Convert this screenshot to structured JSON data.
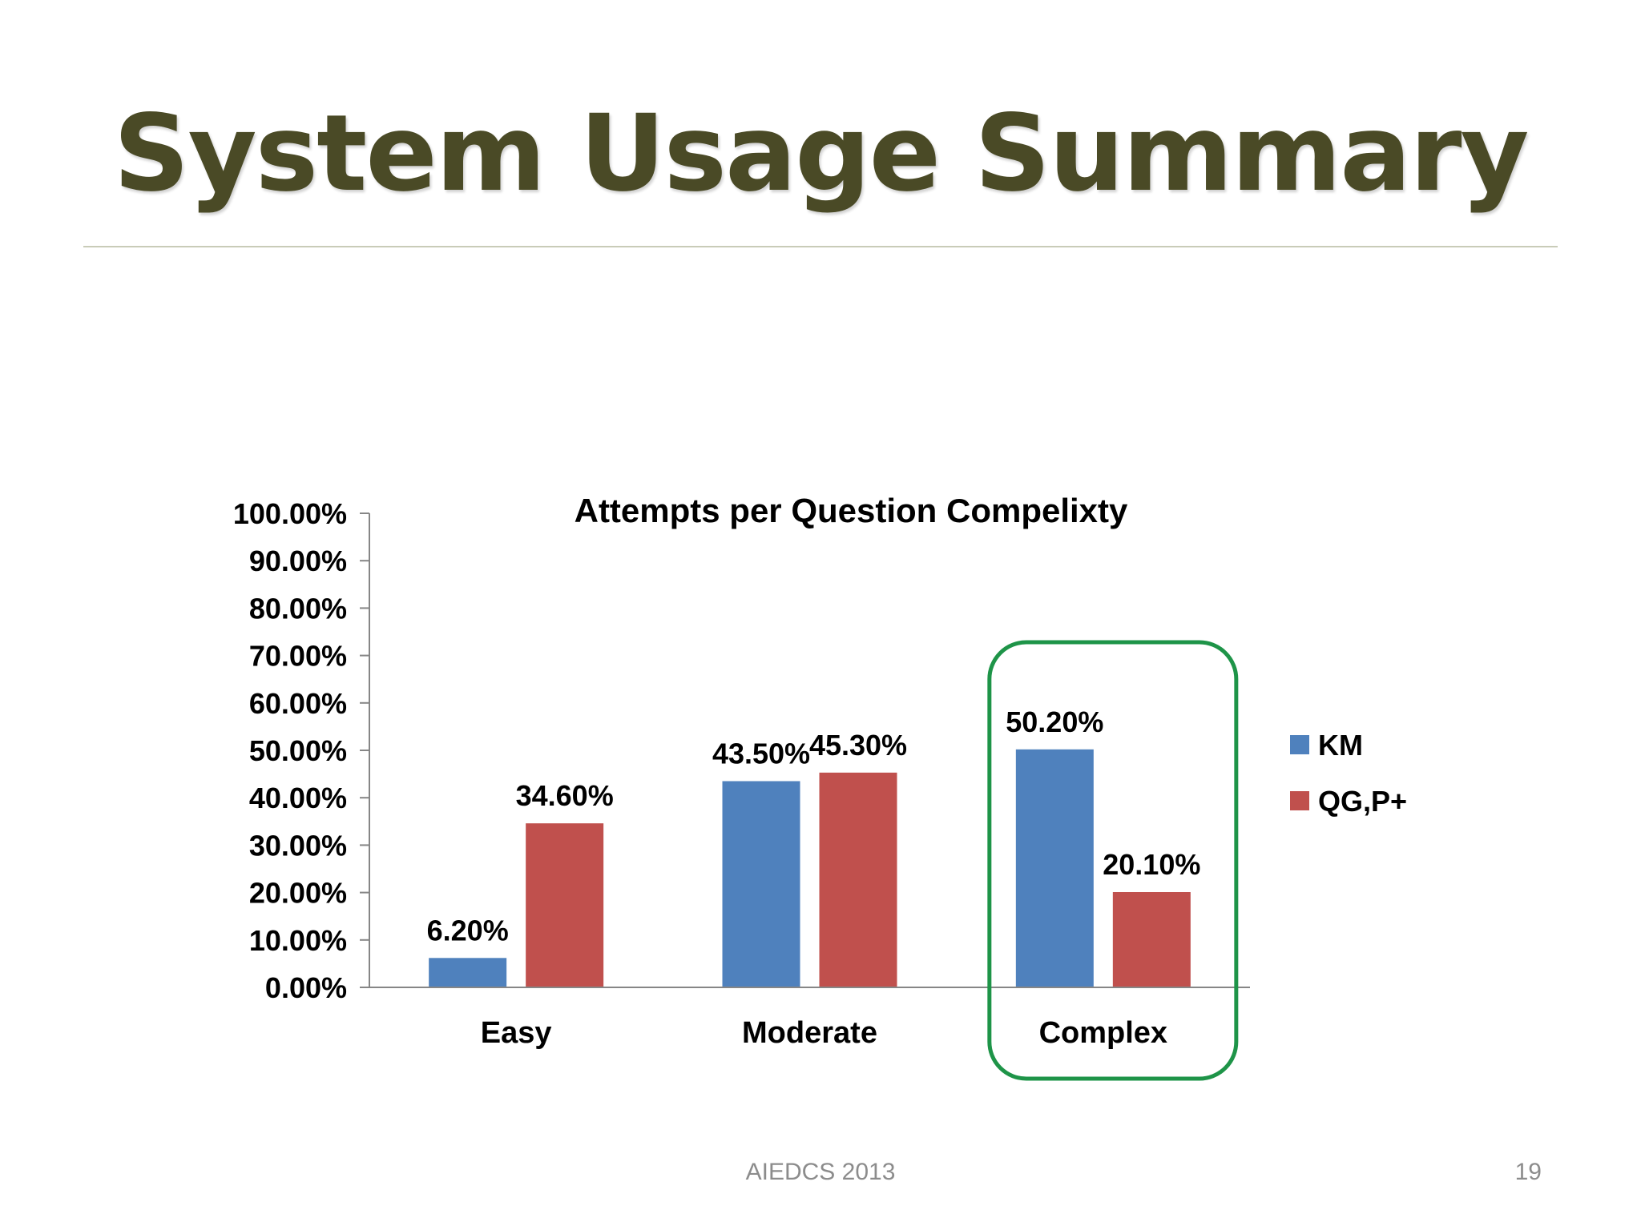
{
  "slide": {
    "title": "System Usage Summary",
    "footer": "AIEDCS 2013",
    "page_number": "19"
  },
  "chart_data": {
    "type": "bar",
    "title": "Attempts per Question Compelixty",
    "xlabel": "",
    "ylabel": "",
    "categories": [
      "Easy",
      "Moderate",
      "Complex"
    ],
    "series": [
      {
        "name": "KM",
        "values": [
          6.2,
          43.5,
          50.2
        ],
        "labels": [
          "6.20%",
          "43.50%",
          "50.20%"
        ],
        "color": "#4f81bd"
      },
      {
        "name": "QG,P+",
        "values": [
          34.6,
          45.3,
          20.1
        ],
        "labels": [
          "34.60%",
          "45.30%",
          "20.10%"
        ],
        "color": "#c0504d"
      }
    ],
    "ylim": [
      0,
      100
    ],
    "yticks": [
      "0.00%",
      "10.00%",
      "20.00%",
      "30.00%",
      "40.00%",
      "50.00%",
      "60.00%",
      "70.00%",
      "80.00%",
      "90.00%",
      "100.00%"
    ],
    "grid": false,
    "legend_position": "right",
    "highlight": {
      "category": "Complex",
      "color": "#1e9448"
    }
  }
}
